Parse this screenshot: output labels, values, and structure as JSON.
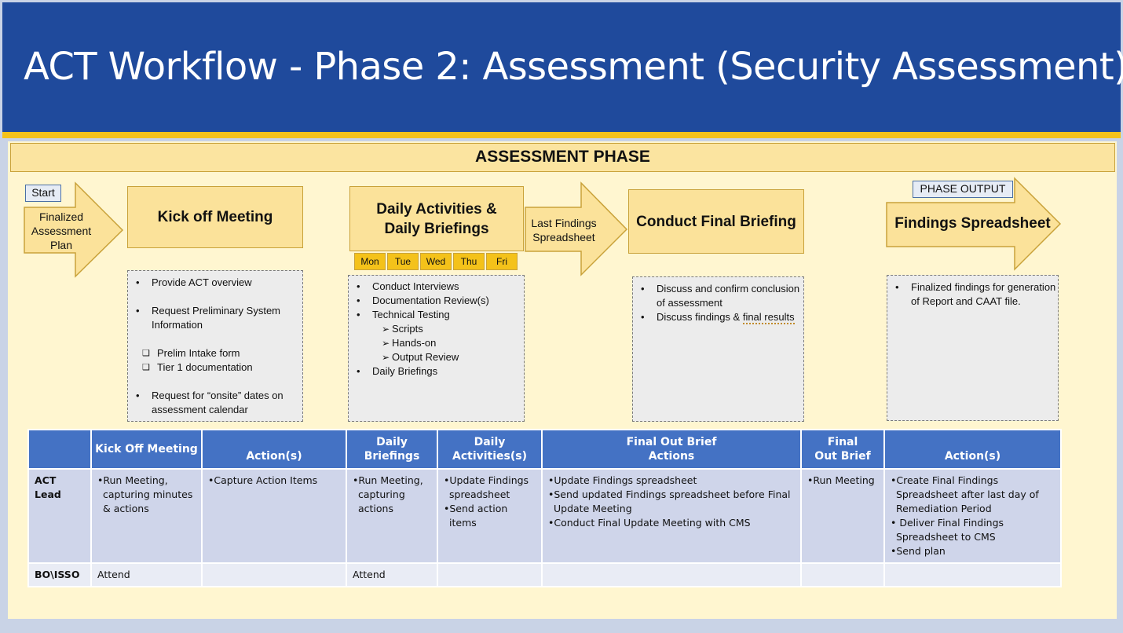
{
  "title": "ACT Workflow - Phase 2: Assessment (Security Assessment)",
  "phase_banner": "ASSESSMENT PHASE",
  "start_tag": "Start",
  "start_arrow": {
    "lines": [
      "Finalized",
      "Assessment",
      "Plan"
    ]
  },
  "steps": {
    "kickoff": "Kick off Meeting",
    "daily_line1": "Daily Activities &",
    "daily_line2": "Daily Briefings",
    "final_briefing": "Conduct Final Briefing",
    "findings": "Findings Spreadsheet"
  },
  "middle_arrow": {
    "lines": [
      "Last Findings",
      "Spreadsheet"
    ]
  },
  "phase_output_tag": "PHASE OUTPUT",
  "days": [
    "Mon",
    "Tue",
    "Wed",
    "Thu",
    "Fri"
  ],
  "kickoff_details": {
    "b1": "Provide ACT overview",
    "b2_l1": "Request Preliminary System",
    "b2_l2": "Information",
    "sq1": "Prelim Intake form",
    "sq2": "Tier 1 documentation",
    "b3_l1": "Request for “onsite” dates on",
    "b3_l2": "assessment calendar"
  },
  "daily_details": {
    "b1": "Conduct Interviews",
    "b2": "Documentation Review(s)",
    "b3": "Technical Testing",
    "s1": "Scripts",
    "s2": "Hands-on",
    "s3": "Output Review",
    "b4": "Daily Briefings"
  },
  "final_details": {
    "b1_l1": "Discuss and confirm conclusion",
    "b1_l2": "of assessment",
    "b2_pre": "Discuss findings & ",
    "b2_squiggle": "final results"
  },
  "output_details": {
    "b1_l1": "Finalized findings for generation",
    "b1_l2": "of Report and CAAT file."
  },
  "table": {
    "headers": {
      "c0": "",
      "c1": "Kick Off Meeting",
      "c2": "Action(s)",
      "c3_l1": "Daily",
      "c3_l2": "Briefings",
      "c4_l1": "Daily",
      "c4_l2": "Activities(s)",
      "c5_l1": "Final Out Brief",
      "c5_l2": "Actions",
      "c6_l1": "Final",
      "c6_l2": "Out Brief",
      "c7": "Action(s)"
    },
    "act_lead": {
      "label": "ACT Lead",
      "c1": [
        "•Run Meeting,",
        "  capturing minutes",
        "  & actions"
      ],
      "c2": [
        "•Capture Action Items"
      ],
      "c3": [
        "•Run Meeting,",
        "  capturing",
        "  actions"
      ],
      "c4": [
        "•Update Findings",
        "  spreadsheet",
        "•Send action",
        "  items"
      ],
      "c5": [
        "•Update Findings spreadsheet",
        "•Send updated Findings spreadsheet before Final",
        "  Update Meeting",
        "•Conduct Final Update Meeting with CMS"
      ],
      "c6": [
        "•Run Meeting"
      ],
      "c7": [
        "•Create Final Findings",
        "  Spreadsheet after last day of",
        "  Remediation Period",
        "• Deliver Final Findings",
        "  Spreadsheet to CMS",
        "•Send plan"
      ]
    },
    "bo_isso": {
      "label": "BO\\ISSO",
      "c1": "Attend",
      "c3": "Attend"
    }
  },
  "colors": {
    "title_bg": "#1f4a9c",
    "accent_gold": "#f4c21a",
    "box_fill": "#fbe29a",
    "table_header": "#4472c4"
  }
}
